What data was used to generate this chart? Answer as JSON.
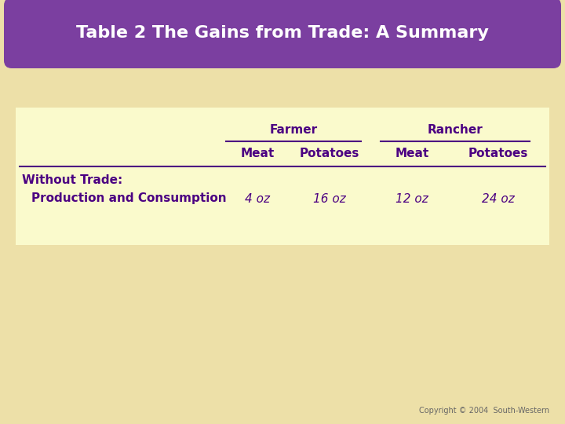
{
  "title": "Table 2 The Gains from Trade: A Summary",
  "title_bg_color": "#7B3FA0",
  "title_text_color": "#FFFFFF",
  "background_color": "#EDE0A8",
  "table_bg_color": "#FAFACC",
  "text_color": "#4B0082",
  "copyright": "Copyright © 2004  South-Western",
  "col_headers_level1": [
    "Farmer",
    "Rancher"
  ],
  "col_headers_level2": [
    "Meat",
    "Potatoes",
    "Meat",
    "Potatoes"
  ],
  "row_group": "Without Trade:",
  "row_label": "Production and Consumption",
  "row_data": [
    "4 oz",
    "16 oz",
    "12 oz",
    "24 oz"
  ],
  "figsize": [
    7.2,
    5.4
  ],
  "dpi": 100
}
